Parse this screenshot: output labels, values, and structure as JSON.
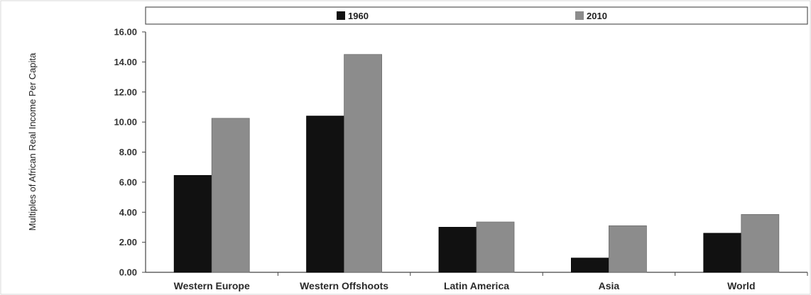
{
  "chart_data": {
    "type": "bar",
    "title": "",
    "xlabel": "",
    "ylabel": "Multiples of African Real Income Per Capita",
    "categories": [
      "Western Europe",
      "Western Offshoots",
      "Latin America",
      "Asia",
      "World"
    ],
    "series": [
      {
        "name": "1960",
        "color": "#111111",
        "values": [
          6.45,
          10.4,
          3.0,
          0.95,
          2.6
        ]
      },
      {
        "name": "2010",
        "color": "#8c8c8c",
        "values": [
          10.25,
          14.5,
          3.35,
          3.1,
          3.85
        ]
      }
    ],
    "ylim": [
      0,
      16
    ],
    "yticks": [
      "0.00",
      "2.00",
      "4.00",
      "6.00",
      "8.00",
      "10.00",
      "12.00",
      "14.00",
      "16.00"
    ],
    "grid": false,
    "legend_position": "top"
  }
}
